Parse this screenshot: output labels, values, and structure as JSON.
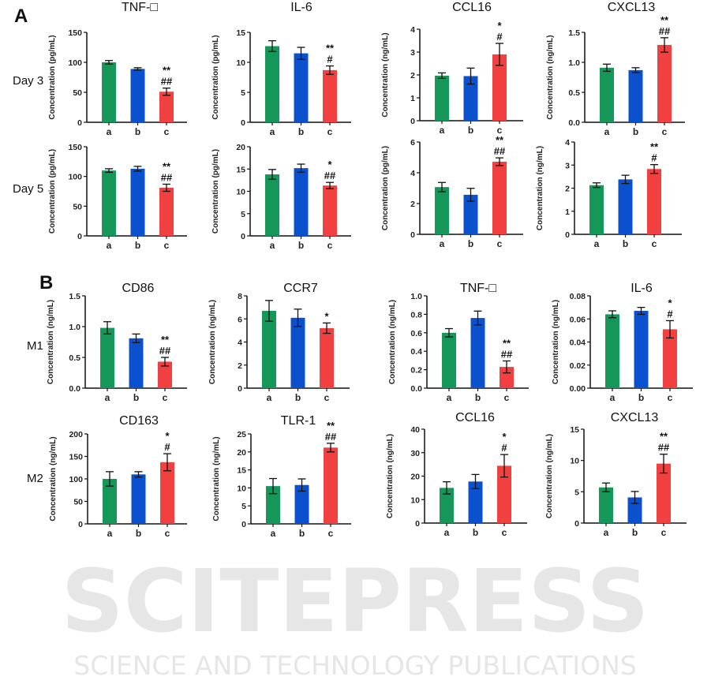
{
  "figure": {
    "panel_a_label": "A",
    "panel_b_label": "B",
    "row_labels": [
      "Day 3",
      "Day 5",
      "M1",
      "M2"
    ],
    "watermark": {
      "logo_text": "SCITEPRESS",
      "subtitle": "SCIENCE AND TECHNOLOGY PUBLICATIONS"
    },
    "colors": {
      "a": "#16975a",
      "b": "#0b50cc",
      "c": "#f0403f"
    }
  },
  "chart_data": [
    {
      "type": "bar",
      "panel": "A",
      "row": "Day 3",
      "title": "TNF-□",
      "ylabel": "Concentration (pg/mL)",
      "categories": [
        "a",
        "b",
        "c"
      ],
      "ylim": [
        0,
        150
      ],
      "yticks": [
        "0",
        "50",
        "100",
        "150"
      ],
      "values": [
        100,
        89,
        51
      ],
      "errors": [
        3,
        2,
        6
      ],
      "significance": [
        "",
        "",
        "**\n##"
      ]
    },
    {
      "type": "bar",
      "panel": "A",
      "row": "Day 3",
      "title": "IL-6",
      "ylabel": "Concentration (pg/mL)",
      "categories": [
        "a",
        "b",
        "c"
      ],
      "ylim": [
        0,
        15
      ],
      "yticks": [
        "0",
        "5",
        "10",
        "15"
      ],
      "values": [
        12.7,
        11.5,
        8.7
      ],
      "errors": [
        0.9,
        1.0,
        0.7
      ],
      "significance": [
        "",
        "",
        "**\n#"
      ]
    },
    {
      "type": "bar",
      "panel": "A",
      "row": "Day 3",
      "title": "CCL16",
      "ylabel": "Concentration (ng/mL)",
      "categories": [
        "a",
        "b",
        "c"
      ],
      "ylim": [
        0,
        4
      ],
      "yticks": [
        "0",
        "1",
        "2",
        "3",
        "4"
      ],
      "values": [
        1.97,
        1.95,
        2.9
      ],
      "errors": [
        0.12,
        0.35,
        0.48
      ],
      "significance": [
        "",
        "",
        "*\n#"
      ]
    },
    {
      "type": "bar",
      "panel": "A",
      "row": "Day 3",
      "title": "CXCL13",
      "ylabel": "Concentration (ng/mL)",
      "categories": [
        "a",
        "b",
        "c"
      ],
      "ylim": [
        0,
        1.5
      ],
      "yticks": [
        "0.0",
        "0.5",
        "1.0",
        "1.5"
      ],
      "values": [
        0.91,
        0.87,
        1.29
      ],
      "errors": [
        0.06,
        0.04,
        0.12
      ],
      "significance": [
        "",
        "",
        "**\n##"
      ]
    },
    {
      "type": "bar",
      "panel": "A",
      "row": "Day 5",
      "title": "",
      "ylabel": "Concentration (pg/mL)",
      "categories": [
        "a",
        "b",
        "c"
      ],
      "ylim": [
        0,
        150
      ],
      "yticks": [
        "0",
        "50",
        "100",
        "150"
      ],
      "values": [
        110,
        113,
        81
      ],
      "errors": [
        3,
        4,
        6
      ],
      "significance": [
        "",
        "",
        "**\n##"
      ]
    },
    {
      "type": "bar",
      "panel": "A",
      "row": "Day 5",
      "title": "",
      "ylabel": "Concentration (pg/mL)",
      "categories": [
        "a",
        "b",
        "c"
      ],
      "ylim": [
        0,
        20
      ],
      "yticks": [
        "0",
        "5",
        "10",
        "15",
        "20"
      ],
      "values": [
        13.8,
        15.2,
        11.3
      ],
      "errors": [
        1.1,
        0.9,
        0.7
      ],
      "significance": [
        "",
        "",
        "*\n##"
      ]
    },
    {
      "type": "bar",
      "panel": "A",
      "row": "Day 5",
      "title": "",
      "ylabel": "Concentration (pg/mL)",
      "categories": [
        "a",
        "b",
        "c"
      ],
      "ylim": [
        0,
        6
      ],
      "yticks": [
        "0",
        "2",
        "4",
        "6"
      ],
      "values": [
        3.07,
        2.57,
        4.72
      ],
      "errors": [
        0.3,
        0.42,
        0.25
      ],
      "significance": [
        "",
        "",
        "**\n##"
      ]
    },
    {
      "type": "bar",
      "panel": "A",
      "row": "Day 5",
      "title": "",
      "ylabel": "Concentration (ng/mL)",
      "categories": [
        "a",
        "b",
        "c"
      ],
      "ylim": [
        0,
        4
      ],
      "yticks": [
        "0",
        "1",
        "2",
        "3",
        "4"
      ],
      "values": [
        2.13,
        2.38,
        2.83
      ],
      "errors": [
        0.1,
        0.18,
        0.19
      ],
      "significance": [
        "",
        "",
        "**\n#"
      ]
    },
    {
      "type": "bar",
      "panel": "B",
      "row": "M1",
      "title": "CD86",
      "ylabel": "Concentration (ng/mL)",
      "categories": [
        "a",
        "b",
        "c"
      ],
      "ylim": [
        0,
        1.5
      ],
      "yticks": [
        "0.0",
        "0.5",
        "1.0",
        "1.5"
      ],
      "values": [
        0.98,
        0.81,
        0.43
      ],
      "errors": [
        0.1,
        0.07,
        0.07
      ],
      "significance": [
        "",
        "",
        "**\n##"
      ]
    },
    {
      "type": "bar",
      "panel": "B",
      "row": "M1",
      "title": "CCR7",
      "ylabel": "Concentration (ng/mL)",
      "categories": [
        "a",
        "b",
        "c"
      ],
      "ylim": [
        0,
        8
      ],
      "yticks": [
        "0",
        "2",
        "4",
        "6",
        "8"
      ],
      "values": [
        6.7,
        6.1,
        5.2
      ],
      "errors": [
        0.9,
        0.75,
        0.45
      ],
      "significance": [
        "",
        "",
        "*"
      ]
    },
    {
      "type": "bar",
      "panel": "B",
      "row": "M1",
      "title": "TNF-□",
      "ylabel": "Concentration (ng/mL)",
      "categories": [
        "a",
        "b",
        "c"
      ],
      "ylim": [
        0,
        1.0
      ],
      "yticks": [
        "0.0",
        "0.2",
        "0.4",
        "0.6",
        "0.8",
        "1.0"
      ],
      "values": [
        0.6,
        0.76,
        0.23
      ],
      "errors": [
        0.045,
        0.075,
        0.065
      ],
      "significance": [
        "",
        "",
        "**\n##"
      ]
    },
    {
      "type": "bar",
      "panel": "B",
      "row": "M1",
      "title": "IL-6",
      "ylabel": "Concentration (ng/mL)",
      "categories": [
        "a",
        "b",
        "c"
      ],
      "ylim": [
        0,
        0.08
      ],
      "yticks": [
        "0.00",
        "0.02",
        "0.04",
        "0.06",
        "0.08"
      ],
      "values": [
        0.064,
        0.067,
        0.051
      ],
      "errors": [
        0.003,
        0.003,
        0.0075
      ],
      "significance": [
        "",
        "",
        "*\n#"
      ]
    },
    {
      "type": "bar",
      "panel": "B",
      "row": "M2",
      "title": "CD163",
      "ylabel": "Concentration (ng/mL)",
      "categories": [
        "a",
        "b",
        "c"
      ],
      "ylim": [
        0,
        200
      ],
      "yticks": [
        "0",
        "50",
        "100",
        "150",
        "200"
      ],
      "values": [
        100,
        110,
        137
      ],
      "errors": [
        16,
        6,
        19
      ],
      "significance": [
        "",
        "",
        "*\n#"
      ]
    },
    {
      "type": "bar",
      "panel": "B",
      "row": "M2",
      "title": "TLR-1",
      "ylabel": "Concentration (ng/mL)",
      "categories": [
        "a",
        "b",
        "c"
      ],
      "ylim": [
        0,
        25
      ],
      "yticks": [
        "0",
        "5",
        "10",
        "15",
        "20",
        "25"
      ],
      "values": [
        10.5,
        10.8,
        21.2
      ],
      "errors": [
        2.1,
        1.7,
        1.2
      ],
      "significance": [
        "",
        "",
        "**\n##"
      ]
    },
    {
      "type": "bar",
      "panel": "B",
      "row": "M2",
      "title": "CCL16",
      "ylabel": "Concentration (ng/mL)",
      "categories": [
        "a",
        "b",
        "c"
      ],
      "ylim": [
        0,
        40
      ],
      "yticks": [
        "0",
        "10",
        "20",
        "30",
        "40"
      ],
      "values": [
        15,
        17.7,
        24.4
      ],
      "errors": [
        2.6,
        3,
        4.8
      ],
      "significance": [
        "",
        "",
        "*\n#"
      ]
    },
    {
      "type": "bar",
      "panel": "B",
      "row": "M2",
      "title": "CXCL13",
      "ylabel": "Concentration (ng/mL)",
      "categories": [
        "a",
        "b",
        "c"
      ],
      "ylim": [
        0,
        15
      ],
      "yticks": [
        "0",
        "5",
        "10",
        "15"
      ],
      "values": [
        5.7,
        4.1,
        9.5
      ],
      "errors": [
        0.7,
        0.95,
        1.5
      ],
      "significance": [
        "",
        "",
        "**\n##"
      ]
    }
  ]
}
